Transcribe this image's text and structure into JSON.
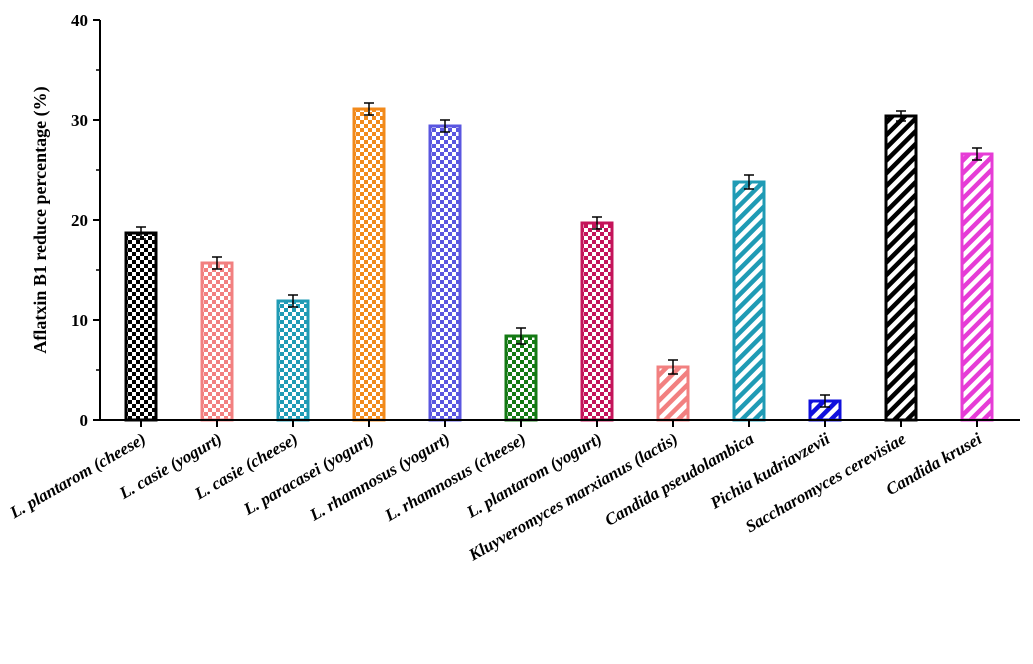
{
  "chart_data": {
    "type": "bar",
    "title": "",
    "xlabel": "",
    "ylabel": "Aflatxin B1 reduce percentage (%)",
    "ylim": [
      0,
      40
    ],
    "yticks": [
      "0",
      "10",
      "20",
      "30",
      "40"
    ],
    "grid": false,
    "categories": [
      "L. plantarom (cheese)",
      "L. casie (yogurt)",
      "L. casie (cheese)",
      "L. paracasei (yogurt)",
      "L. rhamnosus (yogurt)",
      "L. rhamnosus (cheese)",
      "L. plantarom (yogurt)",
      "Kluyveromyces marxianus (lactis)",
      "Candida pseudolambica",
      "Pichia kudriavzevii",
      "Saccharomyces cerevisiae",
      "Candida krusei"
    ],
    "values": [
      18.7,
      15.7,
      11.9,
      31.1,
      29.4,
      8.4,
      19.7,
      5.3,
      23.8,
      1.9,
      30.4,
      26.6
    ],
    "errors": [
      0.6,
      0.6,
      0.6,
      0.6,
      0.6,
      0.8,
      0.6,
      0.7,
      0.7,
      0.6,
      0.5,
      0.6
    ],
    "colors": [
      "#000000",
      "#f28080",
      "#1f9bb5",
      "#f28a1b",
      "#5a56e0",
      "#147a14",
      "#c4145a",
      "#f28080",
      "#1f9bb5",
      "#1010dd",
      "#000000",
      "#e63cd6"
    ],
    "patterns": [
      "checker",
      "checker",
      "checker",
      "checker",
      "checker",
      "checker",
      "checker",
      "stripe",
      "stripe",
      "stripe",
      "stripe",
      "stripe"
    ]
  }
}
